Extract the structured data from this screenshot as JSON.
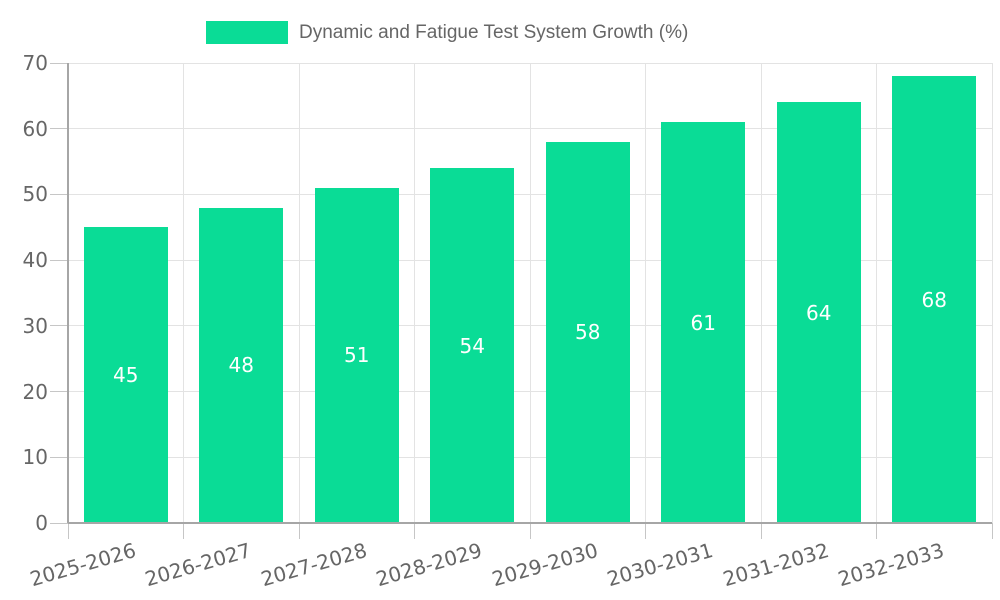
{
  "chart_data": {
    "type": "bar",
    "title": "Dynamic and Fatigue Test System Growth (%)",
    "categories": [
      "2025-2026",
      "2026-2027",
      "2027-2028",
      "2028-2029",
      "2029-2030",
      "2030-2031",
      "2031-2032",
      "2032-2033"
    ],
    "values": [
      45,
      48,
      51,
      54,
      58,
      61,
      64,
      68
    ],
    "yticks": [
      0,
      10,
      20,
      30,
      40,
      50,
      60,
      70
    ],
    "ylim": [
      0,
      70
    ],
    "xlabel": "",
    "ylabel": "",
    "grid": true,
    "legend_position": "top",
    "value_labels_inside_bars": true,
    "colors": {
      "bar": "#0ADC96",
      "value_label": "#FFFFFF",
      "axis_line": "#A6A6A6",
      "grid_line": "#E3E3E3",
      "tick_mark": "#C6C6C6",
      "tick_label": "#666666",
      "legend_text": "#666666",
      "background": "#FFFFFF"
    }
  }
}
